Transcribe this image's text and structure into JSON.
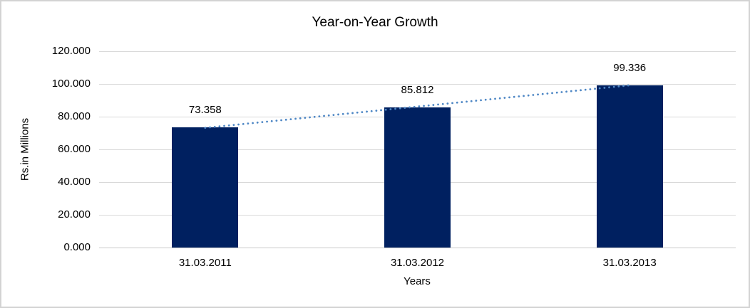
{
  "chart_data": {
    "type": "bar",
    "title": "Year-on-Year Growth",
    "xlabel": "Years",
    "ylabel": "Rs.in Millions",
    "categories": [
      "31.03.2011",
      "31.03.2012",
      "31.03.2013"
    ],
    "values": [
      73.358,
      85.812,
      99.336
    ],
    "value_labels": [
      "73.358",
      "85.812",
      "99.336"
    ],
    "ylim": [
      0,
      120
    ],
    "ytick_values": [
      0,
      20,
      40,
      60,
      80,
      100,
      120
    ],
    "ytick_labels": [
      "0.000",
      "20.000",
      "40.000",
      "60.000",
      "80.000",
      "100.000",
      "120.000"
    ],
    "grid": "horizontal",
    "legend": "none",
    "trendline": {
      "type": "linear",
      "style": "dotted"
    },
    "colors": {
      "bar": "#002060",
      "trendline": "#4e87c5",
      "gridline": "#d9d9d9",
      "frame_border": "#d3d3d3",
      "text": "#000000",
      "background": "#ffffff"
    }
  }
}
